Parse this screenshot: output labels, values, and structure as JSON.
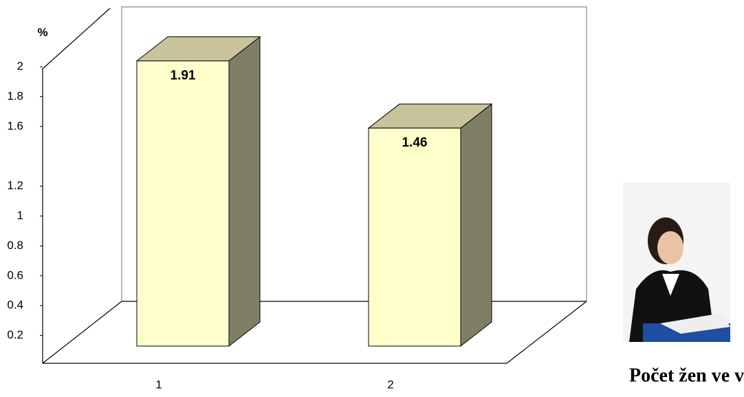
{
  "chart_data": {
    "type": "bar3d",
    "y_label": "%",
    "categories": [
      "1",
      "2"
    ],
    "values": [
      1.91,
      1.46
    ],
    "value_labels": [
      "1.91",
      "1.46"
    ],
    "color": "#ffffcc",
    "top_color": "#c8c39a",
    "side_color": "#7f7f66",
    "ylim": [
      0,
      2
    ],
    "yticks": [
      0.2,
      0.4,
      0.6,
      0.8,
      1,
      1.2,
      1.6,
      1.8,
      2
    ]
  },
  "caption": "Počet žen ve vedení"
}
